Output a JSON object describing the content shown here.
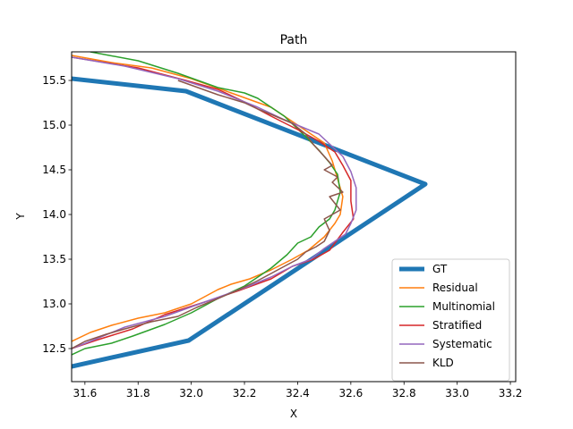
{
  "chart_data": {
    "type": "line",
    "title": "Path",
    "xlabel": "X",
    "ylabel": "Y",
    "xlim": [
      31.55,
      33.22
    ],
    "ylim": [
      12.13,
      15.82
    ],
    "xticks": [
      "31.6",
      "31.8",
      "32.0",
      "32.2",
      "32.4",
      "32.6",
      "32.8",
      "33.0",
      "33.2"
    ],
    "yticks": [
      "12.5",
      "13.0",
      "13.5",
      "14.0",
      "14.5",
      "15.0",
      "15.5"
    ],
    "xtick_values": [
      31.6,
      31.8,
      32.0,
      32.2,
      32.4,
      32.6,
      32.8,
      33.0,
      33.2
    ],
    "ytick_values": [
      12.5,
      13.0,
      13.5,
      14.0,
      14.5,
      15.0,
      15.5
    ],
    "grid": false,
    "legend_position": "bottom-right",
    "series": [
      {
        "name": "GT",
        "color": "#1f77b4",
        "x": [
          31.55,
          31.98,
          32.88,
          31.99,
          31.55
        ],
        "y": [
          15.52,
          15.38,
          14.34,
          12.59,
          12.3
        ]
      },
      {
        "name": "Residual",
        "color": "#ff7f0e",
        "x": [
          31.55,
          31.7,
          31.85,
          32.0,
          32.15,
          32.3,
          32.4,
          32.5,
          32.53,
          32.55,
          32.57,
          32.56,
          32.54,
          32.5,
          32.44,
          32.38,
          32.3,
          32.22,
          32.15,
          32.1,
          32.0,
          31.9,
          31.8,
          31.7,
          31.62,
          31.55
        ],
        "y": [
          15.78,
          15.7,
          15.64,
          15.52,
          15.36,
          15.2,
          15.0,
          14.8,
          14.6,
          14.4,
          14.2,
          14.0,
          13.9,
          13.75,
          13.6,
          13.5,
          13.38,
          13.28,
          13.22,
          13.16,
          13.0,
          12.9,
          12.84,
          12.76,
          12.68,
          12.58
        ]
      },
      {
        "name": "Multinomial",
        "color": "#2ca02c",
        "x": [
          31.62,
          31.8,
          31.95,
          32.1,
          32.2,
          32.25,
          32.35,
          32.42,
          32.48,
          32.52,
          32.55,
          32.56,
          32.54,
          32.52,
          32.48,
          32.45,
          32.4,
          32.36,
          32.3,
          32.2,
          32.1,
          32.0,
          31.9,
          31.78,
          31.7,
          31.6,
          31.55
        ],
        "y": [
          15.82,
          15.72,
          15.58,
          15.42,
          15.36,
          15.3,
          15.1,
          14.9,
          14.72,
          14.58,
          14.45,
          14.25,
          14.05,
          13.95,
          13.86,
          13.75,
          13.68,
          13.55,
          13.4,
          13.2,
          13.06,
          12.9,
          12.77,
          12.64,
          12.56,
          12.5,
          12.43
        ]
      },
      {
        "name": "Stratified",
        "color": "#d62728",
        "x": [
          31.55,
          31.8,
          31.98,
          32.1,
          32.2,
          32.3,
          32.4,
          32.48,
          32.54,
          32.57,
          32.6,
          32.6,
          32.61,
          32.57,
          32.52,
          32.46,
          32.38,
          32.3,
          32.18,
          32.05,
          31.9,
          31.78,
          31.65,
          31.55
        ],
        "y": [
          15.76,
          15.64,
          15.5,
          15.4,
          15.26,
          15.1,
          14.95,
          14.82,
          14.7,
          14.55,
          14.38,
          14.15,
          13.95,
          13.8,
          13.6,
          13.5,
          13.42,
          13.28,
          13.15,
          13.02,
          12.88,
          12.72,
          12.6,
          12.5
        ]
      },
      {
        "name": "Systematic",
        "color": "#9467bd",
        "x": [
          31.55,
          31.75,
          31.95,
          32.1,
          32.25,
          32.35,
          32.48,
          32.57,
          32.6,
          32.62,
          32.62,
          32.6,
          32.58,
          32.5,
          32.45,
          32.38,
          32.3,
          32.2,
          32.05,
          31.9,
          31.75,
          31.62,
          31.55
        ],
        "y": [
          15.76,
          15.66,
          15.52,
          15.38,
          15.2,
          15.06,
          14.9,
          14.65,
          14.48,
          14.3,
          14.05,
          13.9,
          13.78,
          13.62,
          13.5,
          13.42,
          13.3,
          13.18,
          13.02,
          12.86,
          12.74,
          12.58,
          12.5
        ]
      },
      {
        "name": "KLD",
        "color": "#8c564b",
        "x": [
          31.95,
          32.1,
          32.2,
          32.25,
          32.3,
          32.38,
          32.43,
          32.46,
          32.5,
          32.53,
          32.5,
          32.55,
          32.53,
          32.57,
          32.52,
          32.56,
          32.5,
          32.52,
          32.5,
          32.47,
          32.43,
          32.4,
          32.35,
          32.3,
          32.25,
          32.18,
          32.1,
          32.02,
          31.95,
          31.85,
          31.75,
          31.68,
          31.6,
          31.55
        ],
        "y": [
          15.5,
          15.34,
          15.25,
          15.18,
          15.12,
          15.02,
          14.9,
          14.78,
          14.65,
          14.55,
          14.5,
          14.42,
          14.36,
          14.25,
          14.2,
          14.05,
          13.95,
          13.82,
          13.7,
          13.64,
          13.58,
          13.5,
          13.42,
          13.34,
          13.26,
          13.16,
          13.06,
          12.96,
          12.86,
          12.8,
          12.72,
          12.66,
          12.58,
          12.5
        ]
      }
    ]
  }
}
